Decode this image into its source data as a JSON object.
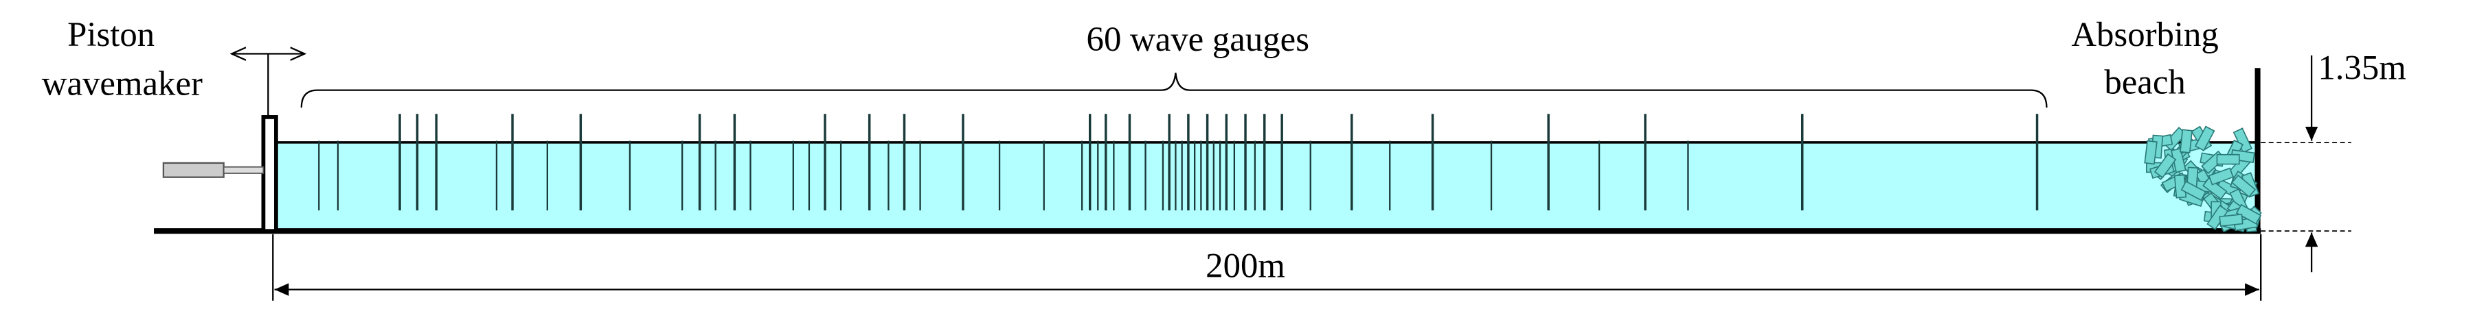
{
  "wavemaker": [
    "Piston",
    "wavemaker"
  ],
  "gauges": "60 wave gauges",
  "beach": [
    "Absorbing",
    "beach"
  ],
  "depth": "1.35m",
  "length": "200m"
}
